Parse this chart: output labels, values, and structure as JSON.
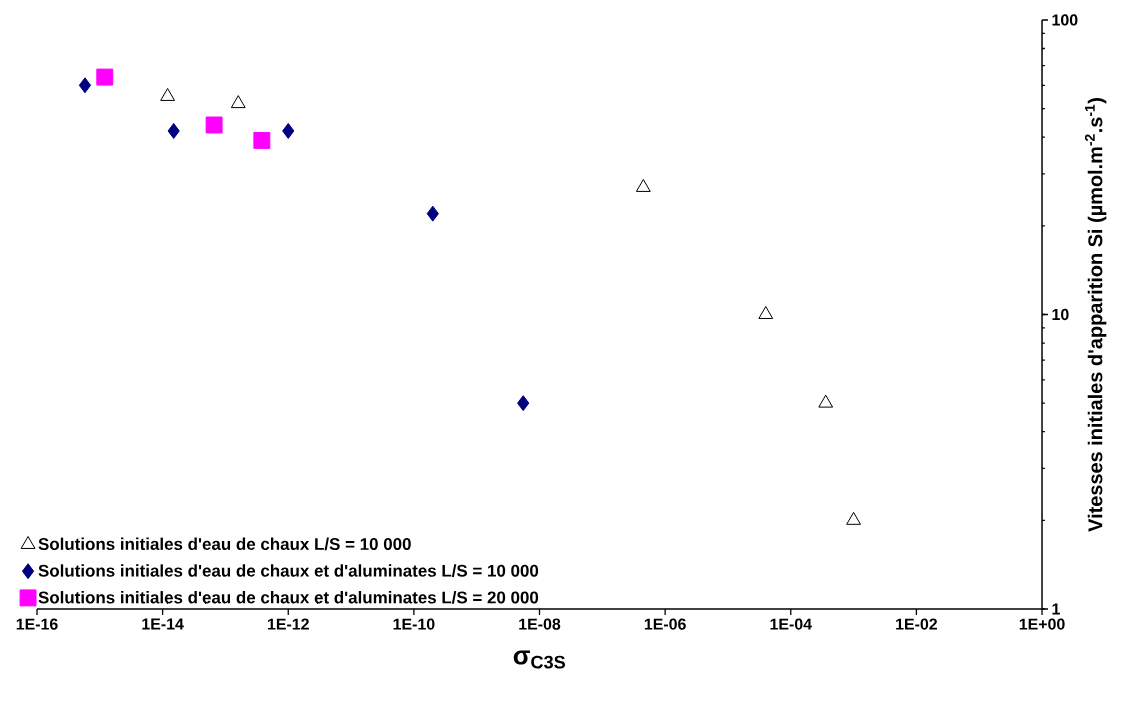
{
  "chart_data": {
    "type": "scatter",
    "xlabel": "σ$_{C3S}$",
    "ylabel": "Vitesses initiales d'apparition Si (µmol.m$^{-2}$.s$^{-1}$)",
    "log": "xy",
    "xlim": [
      1e-16,
      1
    ],
    "ylim": [
      1,
      100
    ],
    "xticks": [
      {
        "value": 1e-16,
        "label": "1E-16"
      },
      {
        "value": 1e-14,
        "label": "1E-14"
      },
      {
        "value": 1e-12,
        "label": "1E-12"
      },
      {
        "value": 1e-10,
        "label": "1E-10"
      },
      {
        "value": 1e-08,
        "label": "1E-08"
      },
      {
        "value": 1e-06,
        "label": "1E-06"
      },
      {
        "value": 0.0001,
        "label": "1E-04"
      },
      {
        "value": 0.01,
        "label": "1E-02"
      },
      {
        "value": 1,
        "label": "1E+00"
      }
    ],
    "yticks": [
      1,
      10,
      100
    ],
    "grid": false,
    "legend": "bottom left",
    "series": [
      {
        "name": "Solutions initiales d'eau de chaux L/S = 10 000",
        "color": "#000000",
        "marker": "triangle",
        "x": [
          1.2e-14,
          1.6e-13,
          4.5e-07,
          4e-05,
          0.00036,
          0.001
        ],
        "values": [
          55,
          52,
          27,
          10,
          5,
          2
        ]
      },
      {
        "name": "Solutions initiales d'eau de chaux et d'aluminates L/S = 10 000",
        "color": "#000080",
        "marker": "diamond",
        "x": [
          5.8e-16,
          1.5e-14,
          1e-12,
          2e-10,
          5.5e-09
        ],
        "values": [
          60,
          42,
          42,
          22,
          5
        ]
      },
      {
        "name": "Solutions initiales d'eau de chaux et d'aluminates L/S = 20 000",
        "color": "#ff00ff",
        "marker": "square",
        "x": [
          1.2e-15,
          6.6e-14,
          3.8e-13
        ],
        "values": [
          64,
          44,
          39
        ]
      }
    ]
  }
}
